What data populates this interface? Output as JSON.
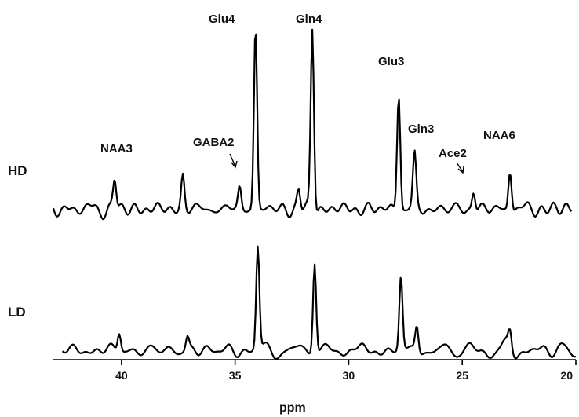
{
  "chart_data": {
    "type": "line",
    "xlabel": "ppm",
    "xlim": [
      43,
      20
    ],
    "x_reversed": true,
    "xticks": [
      40,
      35,
      30,
      25,
      20
    ],
    "xtick_labels": [
      "40",
      "35",
      "30",
      "25",
      "20"
    ],
    "series": [
      {
        "name": "HD",
        "baseline_noise_seed": 7,
        "x_start": 43.0,
        "x_end": 20.2,
        "peaks": [
          {
            "ppm": 40.3,
            "height": 0.16
          },
          {
            "ppm": 37.3,
            "height": 0.18
          },
          {
            "ppm": 34.8,
            "height": 0.12
          },
          {
            "ppm": 34.1,
            "height": 1.0
          },
          {
            "ppm": 32.2,
            "height": 0.1
          },
          {
            "ppm": 31.6,
            "height": 1.0
          },
          {
            "ppm": 27.8,
            "height": 0.65
          },
          {
            "ppm": 27.1,
            "height": 0.28
          },
          {
            "ppm": 24.5,
            "height": 0.1
          },
          {
            "ppm": 22.9,
            "height": 0.22
          }
        ]
      },
      {
        "name": "LD",
        "baseline_noise_seed": 13,
        "x_start": 42.6,
        "x_end": 20.0,
        "peaks": [
          {
            "ppm": 40.1,
            "height": 0.18
          },
          {
            "ppm": 37.1,
            "height": 0.12
          },
          {
            "ppm": 34.0,
            "height": 1.0
          },
          {
            "ppm": 31.5,
            "height": 0.9
          },
          {
            "ppm": 27.7,
            "height": 0.7
          },
          {
            "ppm": 27.0,
            "height": 0.25
          },
          {
            "ppm": 22.9,
            "height": 0.16
          }
        ]
      }
    ],
    "annotations": [
      {
        "text": "Glu4",
        "ppm": 34.1,
        "series": "HD"
      },
      {
        "text": "Gln4",
        "ppm": 31.6,
        "series": "HD"
      },
      {
        "text": "Glu3",
        "ppm": 27.8,
        "series": "HD"
      },
      {
        "text": "Gln3",
        "ppm": 27.1,
        "series": "HD"
      },
      {
        "text": "NAA3",
        "ppm": 40.3,
        "series": "HD"
      },
      {
        "text": "GABA2",
        "ppm": 34.8,
        "series": "HD",
        "arrow": true
      },
      {
        "text": "Ace2",
        "ppm": 24.5,
        "series": "HD",
        "arrow": true
      },
      {
        "text": "NAA6",
        "ppm": 22.9,
        "series": "HD"
      }
    ]
  }
}
